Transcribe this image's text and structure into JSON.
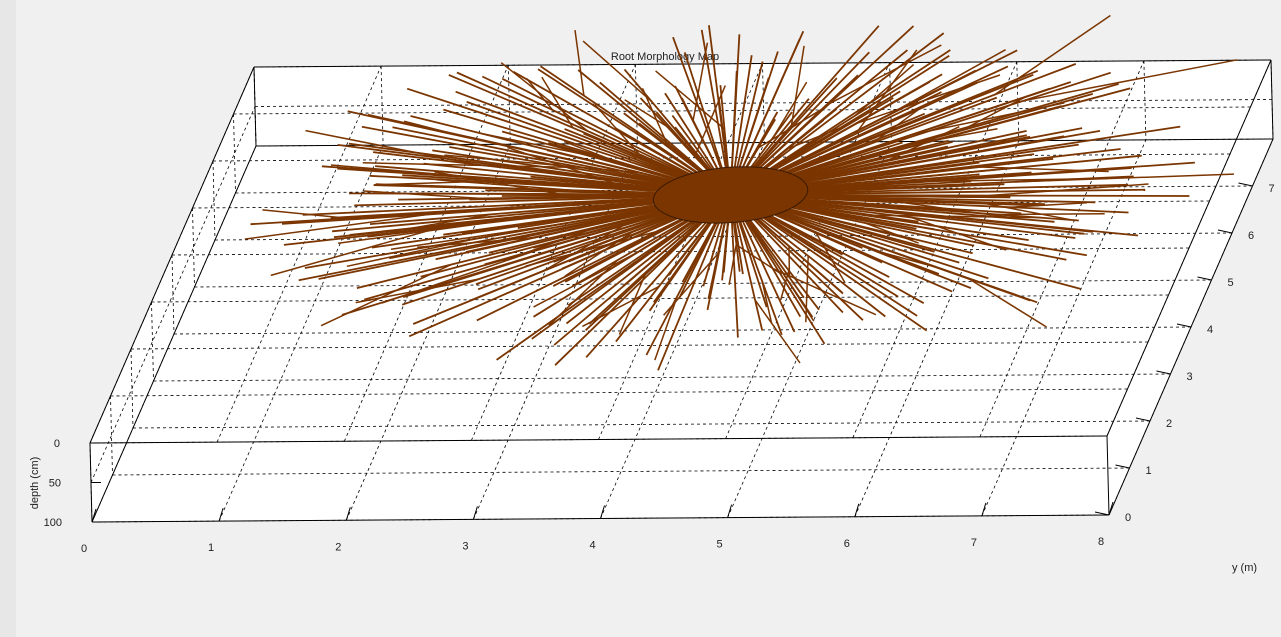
{
  "chart_data": {
    "type": "3d-line",
    "title": "Root Morphology Map",
    "xlabel": "",
    "ylabel": "y (m)",
    "zlabel": "depth (cm)",
    "x_ticks": [
      "0",
      "1",
      "2",
      "3",
      "4",
      "5",
      "6",
      "7",
      "8"
    ],
    "y_ticks": [
      "0",
      "1",
      "2",
      "3",
      "4",
      "5",
      "6",
      "7"
    ],
    "z_ticks": [
      "0",
      "50",
      "100"
    ],
    "xlim": [
      0,
      8
    ],
    "ylim": [
      0,
      8
    ],
    "zlim": [
      0,
      100
    ],
    "grid": true,
    "root_color": "#7a3500",
    "trunk": {
      "x": 4.2,
      "y": 5.2,
      "radius_m": 0.6,
      "color": "#7a3500"
    },
    "root_count": 260,
    "root_length_range_m": [
      1.6,
      3.8
    ],
    "depth_cm": 0
  }
}
